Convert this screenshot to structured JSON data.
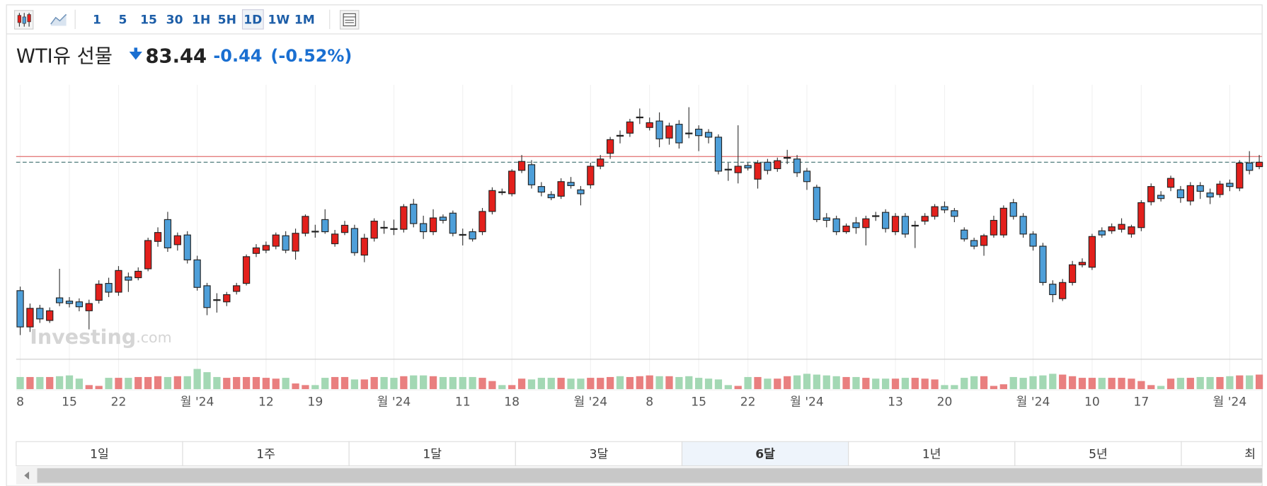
{
  "toolbar": {
    "intervals": [
      "1",
      "5",
      "15",
      "30",
      "1H",
      "5H",
      "1D",
      "1W",
      "1M"
    ],
    "selected_interval": 6
  },
  "chart_data": {
    "type": "candlestick",
    "title": "WTI유 선물",
    "price": 83.44,
    "change": -0.44,
    "change_percent": -0.52,
    "change_percent_label": "(-0.52%)",
    "watermark": {
      "name": "Investing",
      "suffix": ".com"
    },
    "up_color": "#e3201c",
    "down_color": "#4e9fd9",
    "volume_up_color": "#e97f7f",
    "volume_down_color": "#a3d8b4",
    "price_line_color": "#3f6f6f",
    "prev_close_color": "#e57f7f",
    "ylim": [
      69,
      89
    ],
    "vlim": [
      0,
      30
    ],
    "categories": [
      "8",
      null,
      null,
      null,
      null,
      "15",
      null,
      null,
      null,
      null,
      "22",
      null,
      null,
      null,
      null,
      null,
      null,
      null,
      "월 '24",
      null,
      null,
      null,
      null,
      null,
      null,
      "12",
      null,
      null,
      null,
      null,
      "19",
      null,
      null,
      null,
      null,
      null,
      null,
      null,
      "월 '24",
      null,
      null,
      null,
      null,
      null,
      null,
      "11",
      null,
      null,
      null,
      null,
      "18",
      null,
      null,
      null,
      null,
      null,
      null,
      null,
      "월 '24",
      null,
      null,
      null,
      null,
      null,
      "8",
      null,
      null,
      null,
      null,
      "15",
      null,
      null,
      null,
      null,
      "22",
      null,
      null,
      null,
      null,
      null,
      "월 '24",
      null,
      null,
      null,
      null,
      null,
      null,
      null,
      null,
      "13",
      null,
      null,
      null,
      null,
      "20",
      null,
      null,
      null,
      null,
      null,
      null,
      null,
      null,
      "월 '24",
      null,
      null,
      null,
      null,
      null,
      "10",
      null,
      null,
      null,
      null,
      "17",
      null,
      null,
      null,
      null,
      null,
      null,
      null,
      null,
      "월 '24",
      null,
      null,
      null
    ],
    "open": [
      73.5,
      70.69,
      72.13,
      71.19,
      72.94,
      72.69,
      72.63,
      71.94,
      72.75,
      74.06,
      73.38,
      74.56,
      74.5,
      75.19,
      77.31,
      79.0,
      77.06,
      77.81,
      75.88,
      73.88,
      72.8,
      72.63,
      73.44,
      74.06,
      76.38,
      76.63,
      76.94,
      77.75,
      76.56,
      77.94,
      78.1,
      79.0,
      77.13,
      78.0,
      78.31,
      76.25,
      77.56,
      78.4,
      78.3,
      78.25,
      80.19,
      78.69,
      78.06,
      79.19,
      79.5,
      77.85,
      78.06,
      78.06,
      79.63,
      81.15,
      81.0,
      82.81,
      83.25,
      81.56,
      80.94,
      80.81,
      81.88,
      81.3,
      81.69,
      83.13,
      84.13,
      85.52,
      85.69,
      86.93,
      86.13,
      86.63,
      85.31,
      86.38,
      85.7,
      86.0,
      85.75,
      85.38,
      82.9,
      82.63,
      83.19,
      82.13,
      83.44,
      82.94,
      83.8,
      83.69,
      82.75,
      81.5,
      79.13,
      79.06,
      78.06,
      78.75,
      78.38,
      79.3,
      79.56,
      78.06,
      79.25,
      78.55,
      78.88,
      79.25,
      80.0,
      79.69,
      78.19,
      77.38,
      77.0,
      77.81,
      77.81,
      80.31,
      79.25,
      77.88,
      76.94,
      74.0,
      72.88,
      74.13,
      75.5,
      75.31,
      78.13,
      78.13,
      78.25,
      77.88,
      78.38,
      80.38,
      80.88,
      81.5,
      81.31,
      80.44,
      81.63,
      81.06,
      80.94,
      81.81,
      81.44,
      83.38,
      83.1
    ],
    "high": [
      73.81,
      72.5,
      72.4,
      72.2,
      75.19,
      73.0,
      72.9,
      72.8,
      74.3,
      74.5,
      75.4,
      74.9,
      75.3,
      77.6,
      78.4,
      79.6,
      78.0,
      78.1,
      76.2,
      74.1,
      73.3,
      73.4,
      74.1,
      76.3,
      77.1,
      77.3,
      78.0,
      78.1,
      78.3,
      79.4,
      78.6,
      79.8,
      78.2,
      78.9,
      78.6,
      77.9,
      79.1,
      78.9,
      79.0,
      80.2,
      80.6,
      79.3,
      79.8,
      79.4,
      79.7,
      78.3,
      78.3,
      79.9,
      81.5,
      81.4,
      82.9,
      84.0,
      83.6,
      81.9,
      81.2,
      82.2,
      82.3,
      81.6,
      83.4,
      84.0,
      85.4,
      85.9,
      86.8,
      87.6,
      86.9,
      87.3,
      86.5,
      86.7,
      87.7,
      86.3,
      86.0,
      85.6,
      83.4,
      86.3,
      83.4,
      83.6,
      83.7,
      83.8,
      84.4,
      84.0,
      83.0,
      81.7,
      79.5,
      79.3,
      78.7,
      79.2,
      79.3,
      79.6,
      79.8,
      79.5,
      79.5,
      78.9,
      79.5,
      80.2,
      80.4,
      79.9,
      78.4,
      77.6,
      77.9,
      79.3,
      80.1,
      80.6,
      79.5,
      78.1,
      77.2,
      74.3,
      74.4,
      75.8,
      76.0,
      77.9,
      78.4,
      78.7,
      79.1,
      78.6,
      80.5,
      81.8,
      81.2,
      82.4,
      81.6,
      81.9,
      81.9,
      81.4,
      82.0,
      82.1,
      83.6,
      84.3,
      84.0
    ],
    "low": [
      70.06,
      70.3,
      71.0,
      71.0,
      72.3,
      72.2,
      71.9,
      70.5,
      72.5,
      73.0,
      73.1,
      73.4,
      74.3,
      75.0,
      76.9,
      76.5,
      76.6,
      75.6,
      73.5,
      71.6,
      71.8,
      72.3,
      73.2,
      73.9,
      76.1,
      76.4,
      76.7,
      76.4,
      75.9,
      77.7,
      77.6,
      77.9,
      76.9,
      77.8,
      76.2,
      75.7,
      77.3,
      77.9,
      77.8,
      78.0,
      78.4,
      77.5,
      77.8,
      78.7,
      77.7,
      77.0,
      77.3,
      77.8,
      79.4,
      80.9,
      80.8,
      82.6,
      81.4,
      80.8,
      80.5,
      80.6,
      81.4,
      80.1,
      81.4,
      82.9,
      83.7,
      84.9,
      85.4,
      86.4,
      85.9,
      84.6,
      84.8,
      84.5,
      85.3,
      84.3,
      84.9,
      82.5,
      82.0,
      81.8,
      82.8,
      81.4,
      82.5,
      82.7,
      83.3,
      82.3,
      81.3,
      78.8,
      78.4,
      77.8,
      77.9,
      77.9,
      77.0,
      78.9,
      78.0,
      77.8,
      77.6,
      76.8,
      78.6,
      79.0,
      79.5,
      78.8,
      77.3,
      76.7,
      76.2,
      77.6,
      77.6,
      79.0,
      77.6,
      76.6,
      73.9,
      72.6,
      72.7,
      73.9,
      75.3,
      75.1,
      77.6,
      77.9,
      78.0,
      77.6,
      78.1,
      80.1,
      80.4,
      81.2,
      80.3,
      80.1,
      80.6,
      80.2,
      80.7,
      81.2,
      81.2,
      82.5,
      82.9
    ],
    "close": [
      70.69,
      72.13,
      71.31,
      71.94,
      72.56,
      72.5,
      72.25,
      72.5,
      74.0,
      73.38,
      75.06,
      74.31,
      75.0,
      77.38,
      78.0,
      76.81,
      77.75,
      75.88,
      73.75,
      72.19,
      72.75,
      73.19,
      73.88,
      76.13,
      76.81,
      77.0,
      77.81,
      76.63,
      77.94,
      79.25,
      78.06,
      78.06,
      77.88,
      78.56,
      76.44,
      77.56,
      78.88,
      78.38,
      78.25,
      80.0,
      78.69,
      78.06,
      79.13,
      78.94,
      77.94,
      77.81,
      77.5,
      79.63,
      81.25,
      81.13,
      82.75,
      83.5,
      81.69,
      81.13,
      80.69,
      81.94,
      81.63,
      81.0,
      83.13,
      83.69,
      85.19,
      85.5,
      86.56,
      86.94,
      86.5,
      85.25,
      86.25,
      84.94,
      85.69,
      85.5,
      85.38,
      82.75,
      82.88,
      83.13,
      83.0,
      83.38,
      82.81,
      83.56,
      83.81,
      82.63,
      81.94,
      79.0,
      78.94,
      78.06,
      78.5,
      78.38,
      79.06,
      79.25,
      78.31,
      79.25,
      77.88,
      78.56,
      79.25,
      80.0,
      79.75,
      79.25,
      77.5,
      76.94,
      77.75,
      78.94,
      79.88,
      79.25,
      77.88,
      76.94,
      74.13,
      73.19,
      74.13,
      75.5,
      75.69,
      77.69,
      77.81,
      78.44,
      78.63,
      78.44,
      80.31,
      81.56,
      80.63,
      82.19,
      80.69,
      81.63,
      81.19,
      80.75,
      81.75,
      81.56,
      83.38,
      82.81,
      83.44
    ],
    "volume": [
      15,
      15,
      15,
      15,
      16,
      17,
      13,
      5,
      4,
      14,
      14,
      14,
      15,
      15,
      16,
      15,
      16,
      16,
      25,
      21,
      15,
      14,
      15,
      15,
      15,
      14,
      13,
      14,
      7,
      5,
      5,
      14,
      15,
      15,
      12,
      12,
      15,
      15,
      14,
      16,
      17,
      17,
      16,
      15,
      15,
      15,
      15,
      14,
      10,
      5,
      5,
      13,
      12,
      14,
      14,
      14,
      13,
      13,
      14,
      14,
      15,
      16,
      15,
      16,
      17,
      16,
      16,
      15,
      16,
      14,
      13,
      12,
      5,
      4,
      15,
      15,
      13,
      13,
      16,
      17,
      19,
      18,
      17,
      16,
      15,
      15,
      14,
      13,
      13,
      13,
      14,
      14,
      13,
      12,
      5,
      5,
      14,
      16,
      16,
      4,
      6,
      15,
      14,
      16,
      17,
      19,
      18,
      16,
      14,
      14,
      14,
      14,
      14,
      13,
      10,
      5,
      4,
      13,
      14,
      14,
      15,
      15,
      15,
      16,
      17,
      17,
      18
    ]
  },
  "range_tabs": {
    "labels": [
      "1일",
      "1주",
      "1달",
      "3달",
      "6달",
      "1년",
      "5년",
      "최"
    ],
    "selected": 4
  }
}
